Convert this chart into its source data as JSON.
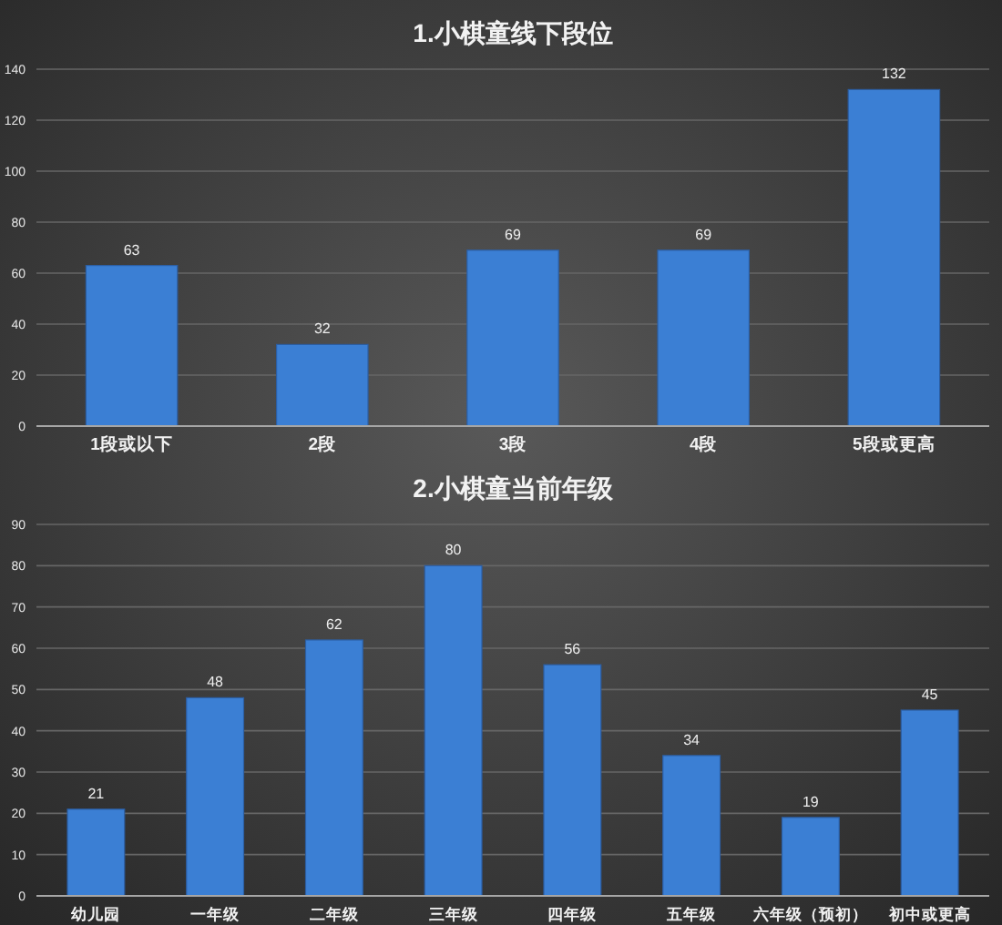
{
  "chart_data": [
    {
      "type": "bar",
      "title": "1.小棋童线下段位",
      "categories": [
        "1段或以下",
        "2段",
        "3段",
        "4段",
        "5段或更高"
      ],
      "values": [
        63,
        32,
        69,
        69,
        132
      ],
      "color": "#3b7fd4",
      "ylim": [
        0,
        140
      ],
      "yticks": [
        0,
        20,
        40,
        60,
        80,
        100,
        120,
        140
      ],
      "grid": "y",
      "data_labels": true
    },
    {
      "type": "bar",
      "title": "2.小棋童当前年级",
      "categories": [
        "幼儿园",
        "一年级",
        "二年级",
        "三年级",
        "四年级",
        "五年级",
        "六年级（预初）",
        "初中或更高"
      ],
      "values": [
        21,
        48,
        62,
        80,
        56,
        34,
        19,
        45
      ],
      "color": "#3b7fd4",
      "ylim": [
        0,
        90
      ],
      "yticks": [
        0,
        10,
        20,
        30,
        40,
        50,
        60,
        70,
        80,
        90
      ],
      "grid": "y",
      "data_labels": true
    }
  ]
}
